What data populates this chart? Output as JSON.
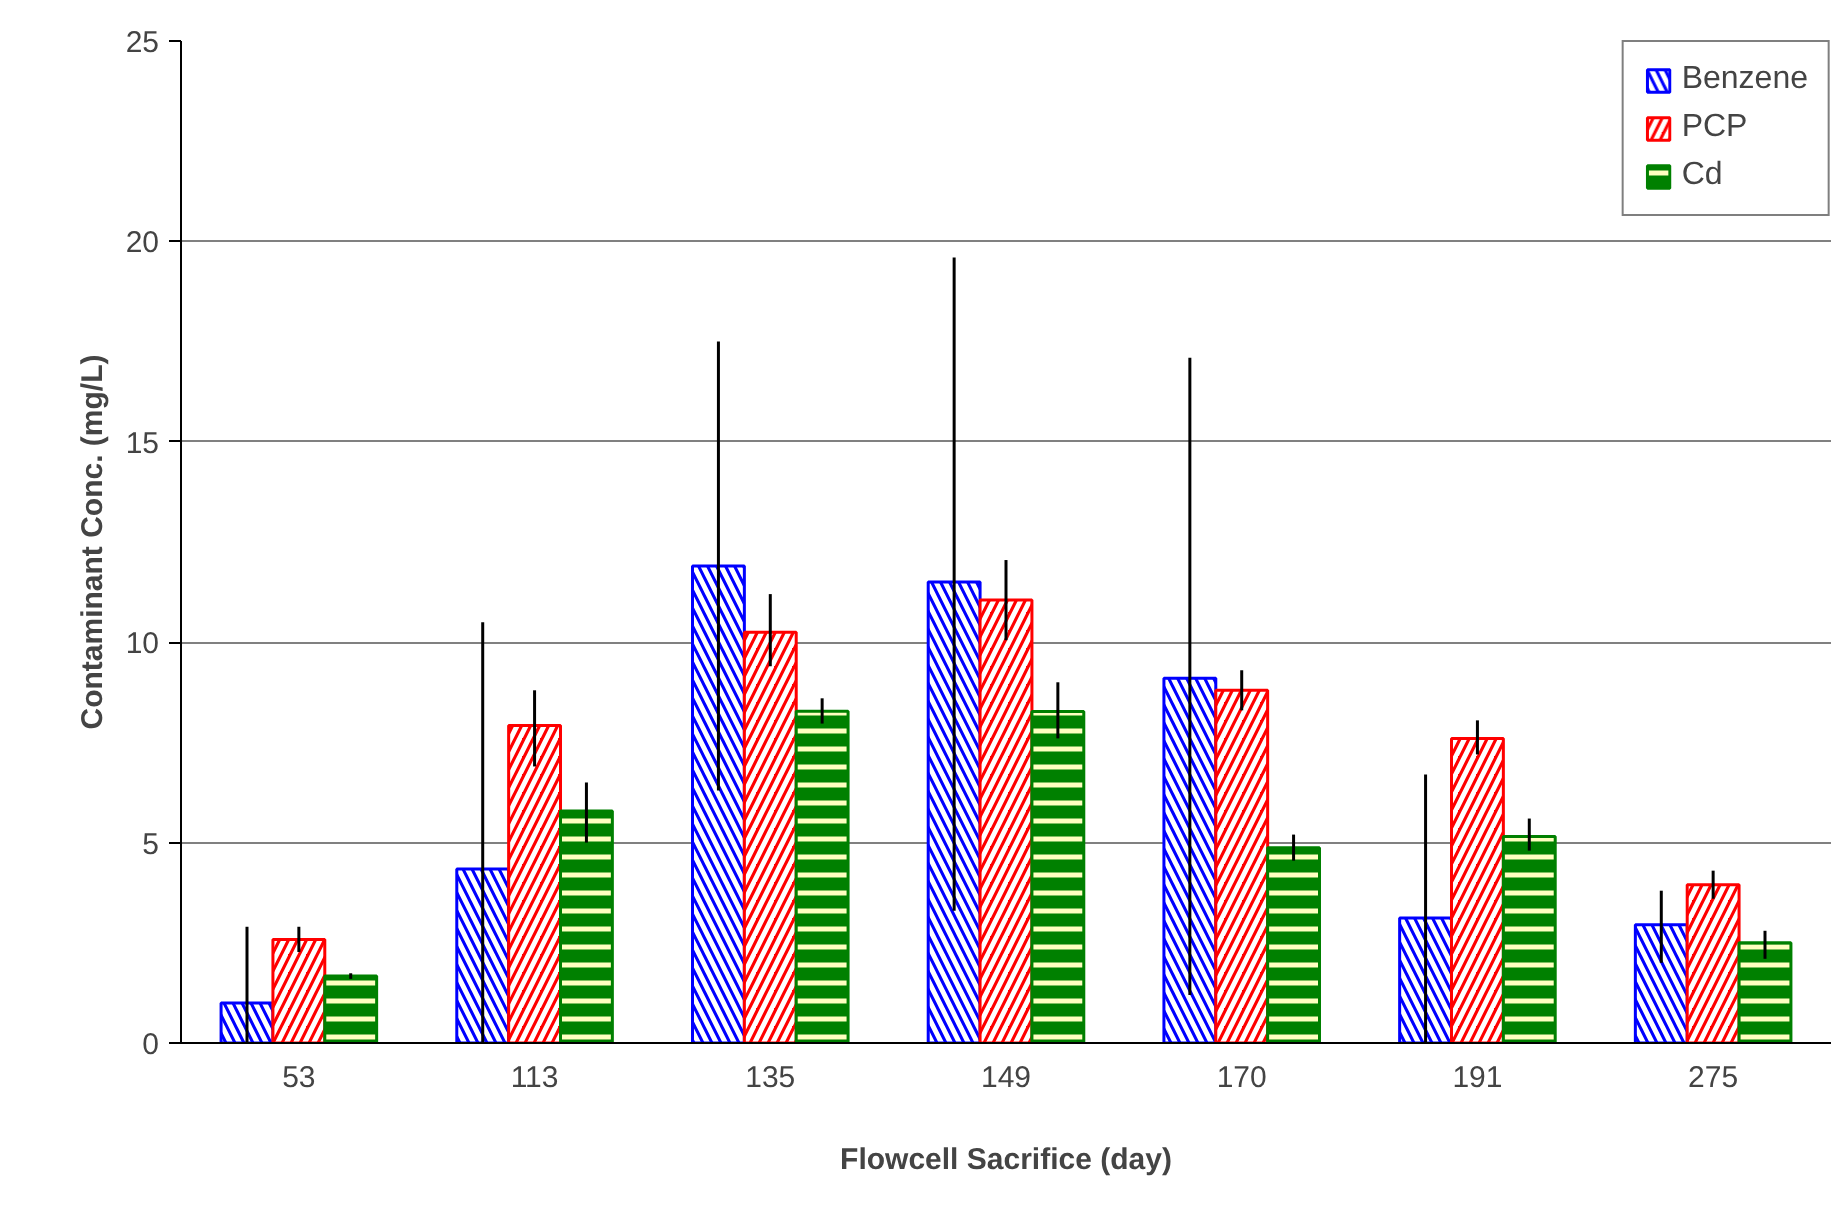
{
  "chart_data": {
    "type": "bar",
    "xlabel": "Flowcell Sacrifice (day)",
    "ylabel": "Contaminant Conc. (mg/L)",
    "categories": [
      "53",
      "113",
      "135",
      "149",
      "170",
      "191",
      "275"
    ],
    "series": [
      {
        "name": "Benzene",
        "color": "#0000ff",
        "values": [
          1.0,
          4.34,
          11.9,
          11.5,
          9.1,
          3.12,
          2.95
        ],
        "errors": [
          [
            0,
            2.9
          ],
          [
            0,
            10.5
          ],
          [
            6.3,
            17.5
          ],
          [
            3.3,
            19.6
          ],
          [
            1.2,
            17.1
          ],
          [
            0,
            6.7
          ],
          [
            2.0,
            3.8
          ]
        ]
      },
      {
        "name": "PCP",
        "color": "#ff0000",
        "values": [
          2.58,
          7.92,
          10.25,
          11.05,
          8.8,
          7.6,
          3.95
        ],
        "errors": [
          [
            2.27,
            2.9
          ],
          [
            6.9,
            8.8
          ],
          [
            9.4,
            11.2
          ],
          [
            10.05,
            12.05
          ],
          [
            8.3,
            9.3
          ],
          [
            7.2,
            8.05
          ],
          [
            3.6,
            4.3
          ]
        ]
      },
      {
        "name": "Cd",
        "color": "#008000",
        "values": [
          1.67,
          5.79,
          8.28,
          8.27,
          4.87,
          5.15,
          2.5
        ],
        "errors": [
          [
            1.6,
            1.74
          ],
          [
            5.0,
            6.5
          ],
          [
            7.97,
            8.6
          ],
          [
            7.6,
            9.0
          ],
          [
            4.55,
            5.2
          ],
          [
            4.8,
            5.6
          ],
          [
            2.1,
            2.8
          ]
        ]
      }
    ],
    "ylim": [
      0,
      25
    ],
    "yticks": [
      0,
      5,
      10,
      15,
      20,
      25
    ],
    "grid": "y",
    "legend": "top right"
  }
}
